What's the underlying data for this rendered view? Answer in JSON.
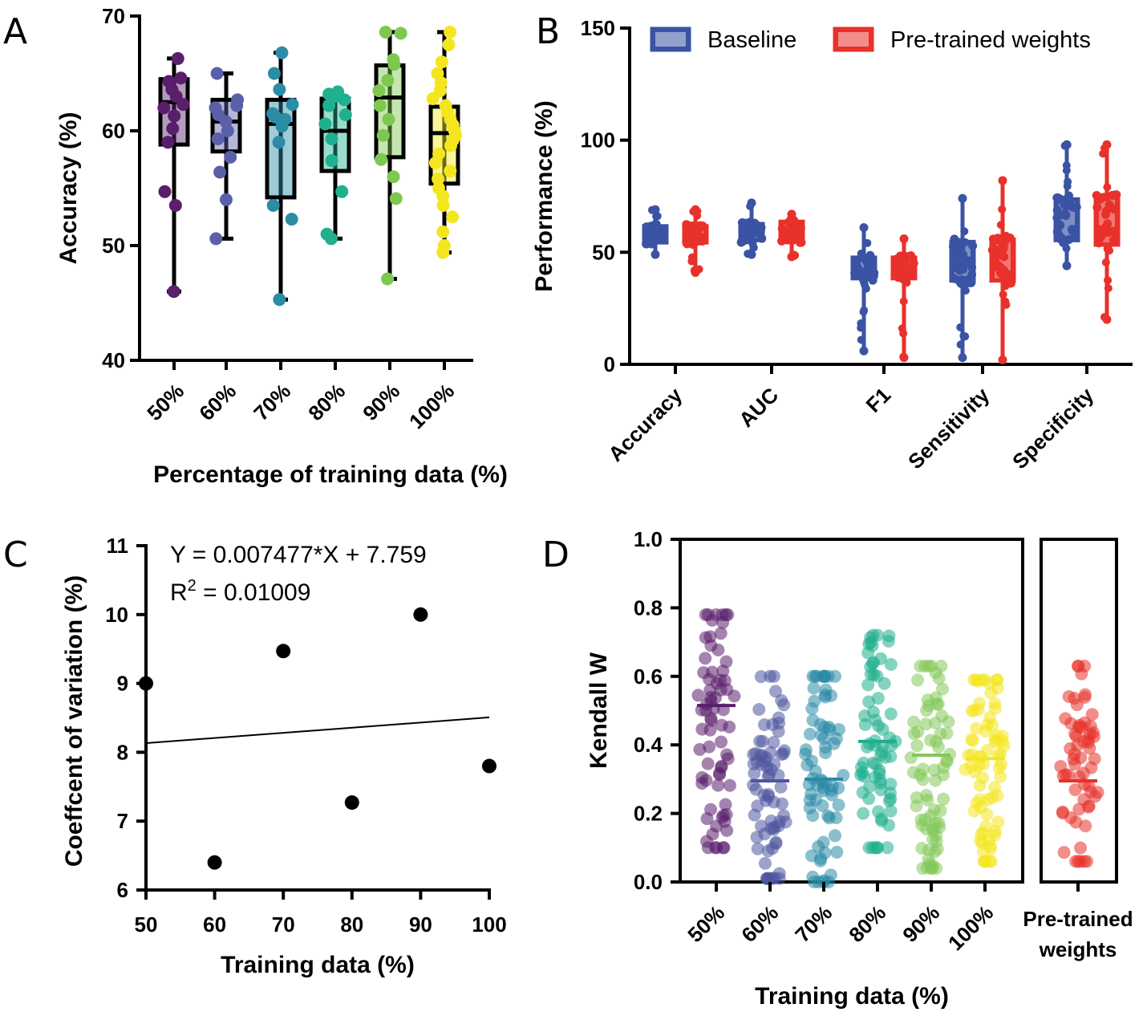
{
  "chart_data": [
    {
      "panel": "A",
      "type": "box",
      "ylabel": "Accuracy (%)",
      "xlabel": "Percentage of training data (%)",
      "ylim": [
        40,
        70
      ],
      "yticks": [
        40,
        50,
        60,
        70
      ],
      "categories": [
        "50%",
        "60%",
        "70%",
        "80%",
        "90%",
        "100%"
      ],
      "colors": [
        "#5a1f6b",
        "#5a60a8",
        "#2b8ca5",
        "#1fb08f",
        "#7ec850",
        "#f4e61e"
      ],
      "boxes": [
        {
          "min": 46.0,
          "q1": 58.8,
          "median": 62.5,
          "q3": 64.5,
          "max": 66.3
        },
        {
          "min": 50.6,
          "q1": 58.2,
          "median": 60.8,
          "q3": 62.7,
          "max": 65.0
        },
        {
          "min": 45.3,
          "q1": 54.2,
          "median": 60.6,
          "q3": 62.7,
          "max": 66.8
        },
        {
          "min": 50.6,
          "q1": 56.5,
          "median": 60.0,
          "q3": 62.8,
          "max": 63.4
        },
        {
          "min": 47.1,
          "q1": 57.7,
          "median": 62.9,
          "q3": 65.7,
          "max": 68.6
        },
        {
          "min": 49.4,
          "q1": 55.4,
          "median": 59.8,
          "q3": 62.1,
          "max": 68.6
        }
      ],
      "points": [
        [
          46.0,
          53.5,
          54.7,
          59.0,
          60.2,
          61.3,
          62.0,
          62.3,
          63.0,
          63.6,
          64.3,
          64.6,
          66.3
        ],
        [
          50.6,
          54.0,
          56.4,
          57.7,
          59.3,
          60.0,
          60.8,
          61.4,
          62.0,
          62.2,
          62.7,
          65.0
        ],
        [
          45.3,
          52.3,
          53.5,
          59.0,
          60.4,
          61.0,
          61.2,
          61.5,
          62.3,
          63.6,
          65.0,
          66.8
        ],
        [
          50.6,
          51.0,
          54.7,
          57.4,
          59.3,
          60.6,
          61.4,
          62.2,
          62.7,
          63.0,
          63.2,
          63.4
        ],
        [
          47.1,
          54.1,
          56.0,
          57.5,
          59.6,
          61.0,
          62.2,
          63.5,
          64.4,
          65.8,
          66.2,
          68.5,
          68.6
        ],
        [
          49.4,
          50.0,
          51.2,
          52.5,
          53.5,
          54.3,
          55.0,
          55.8,
          56.5,
          57.2,
          58.0,
          58.7,
          59.2,
          59.6,
          60.0,
          60.5,
          61.0,
          61.6,
          62.2,
          62.8,
          63.5,
          64.2,
          65.0,
          66.0,
          67.5,
          68.6
        ]
      ]
    },
    {
      "panel": "B",
      "type": "box",
      "ylabel": "Performance (%)",
      "ylim": [
        0,
        150
      ],
      "yticks": [
        0,
        50,
        100,
        150
      ],
      "categories": [
        "Accuracy",
        "AUC",
        "F1",
        "Sensitivity",
        "Specificity"
      ],
      "series": [
        {
          "name": "Baseline",
          "color": "#3a53a4",
          "boxes": [
            {
              "min": 49,
              "q1": 54,
              "median": 58,
              "q3": 62,
              "max": 69
            },
            {
              "min": 49,
              "q1": 55,
              "median": 59,
              "q3": 63,
              "max": 72
            },
            {
              "min": 6,
              "q1": 38,
              "median": 44,
              "q3": 48,
              "max": 61
            },
            {
              "min": 3,
              "q1": 37,
              "median": 46,
              "q3": 55,
              "max": 74
            },
            {
              "min": 44,
              "q1": 55,
              "median": 64,
              "q3": 74,
              "max": 98
            }
          ]
        },
        {
          "name": "Pre-trained weights",
          "color": "#e8312a",
          "boxes": [
            {
              "min": 41,
              "q1": 54,
              "median": 58,
              "q3": 62,
              "max": 69
            },
            {
              "min": 48,
              "q1": 55,
              "median": 60,
              "q3": 64,
              "max": 67
            },
            {
              "min": 3,
              "q1": 38,
              "median": 43,
              "q3": 48,
              "max": 56
            },
            {
              "min": 2,
              "q1": 37,
              "median": 46,
              "q3": 56,
              "max": 82
            },
            {
              "min": 20,
              "q1": 53,
              "median": 63,
              "q3": 75,
              "max": 98
            }
          ]
        }
      ],
      "legend": "top"
    },
    {
      "panel": "C",
      "type": "scatter",
      "xlabel": "Training data (%)",
      "ylabel": "Coeffcent of variation (%)",
      "xlim": [
        50,
        100
      ],
      "ylim": [
        6,
        11
      ],
      "xticks": [
        50,
        60,
        70,
        80,
        90,
        100
      ],
      "yticks": [
        6,
        7,
        8,
        9,
        10,
        11
      ],
      "x": [
        50,
        60,
        70,
        80,
        90,
        100
      ],
      "y": [
        9.0,
        6.4,
        9.47,
        7.27,
        10.0,
        7.8
      ],
      "fit": {
        "slope": 0.007477,
        "intercept": 7.759
      },
      "equation": "Y = 0.007477*X + 7.759",
      "r2_prefix": "R",
      "r2_sup": "2",
      "r2_value": "=  0.01009"
    },
    {
      "panel": "D",
      "type": "scatter",
      "xlabel": "Training data (%)",
      "ylabel": "Kendall W",
      "ylim": [
        0.0,
        1.0
      ],
      "yticks": [
        "0.0",
        "0.2",
        "0.4",
        "0.6",
        "0.8",
        "1.0"
      ],
      "categories": [
        "50%",
        "60%",
        "70%",
        "80%",
        "90%",
        "100%"
      ],
      "extra_category": [
        "Pre-trained",
        "weights"
      ],
      "colors": [
        "#5a1f6b",
        "#4d569e",
        "#2a8aa6",
        "#1fae8e",
        "#84c85a",
        "#f4e61e"
      ],
      "extra_color": "#e8312a",
      "medians": [
        0.515,
        0.295,
        0.3,
        0.41,
        0.37,
        0.36
      ],
      "extra_median": 0.295,
      "ranges": [
        [
          0.1,
          0.78
        ],
        [
          0.01,
          0.6
        ],
        [
          0.0,
          0.6
        ],
        [
          0.1,
          0.72
        ],
        [
          0.04,
          0.63
        ],
        [
          0.06,
          0.59
        ]
      ],
      "extra_range": [
        0.06,
        0.63
      ]
    }
  ],
  "panel_letters": {
    "A": "A",
    "B": "B",
    "C": "C",
    "D": "D"
  }
}
